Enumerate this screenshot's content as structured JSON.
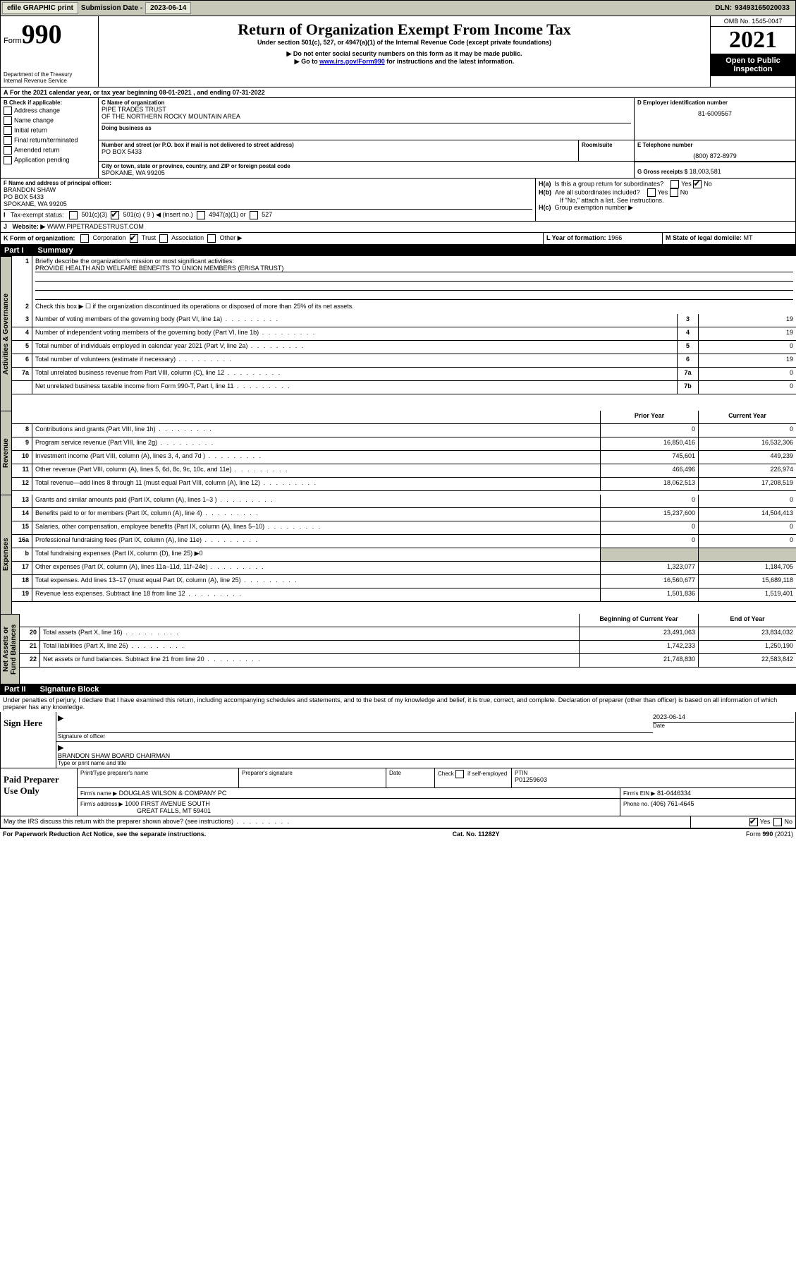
{
  "topbar": {
    "efile": "efile GRAPHIC print",
    "sub_lbl": "Submission Date -",
    "sub_val": "2023-06-14",
    "dln_lbl": "DLN:",
    "dln_val": "93493165020033"
  },
  "header": {
    "form_word": "Form",
    "form_num": "990",
    "title": "Return of Organization Exempt From Income Tax",
    "sub1": "Under section 501(c), 527, or 4947(a)(1) of the Internal Revenue Code (except private foundations)",
    "sub2": "▶ Do not enter social security numbers on this form as it may be made public.",
    "sub3_pre": "▶ Go to ",
    "sub3_link": "www.irs.gov/Form990",
    "sub3_post": " for instructions and the latest information.",
    "dept": "Department of the Treasury",
    "irs": "Internal Revenue Service",
    "omb": "OMB No. 1545-0047",
    "year": "2021",
    "opi": "Open to Public Inspection"
  },
  "A": {
    "text": "For the 2021 calendar year, or tax year beginning 08-01-2021   , and ending 07-31-2022"
  },
  "B": {
    "hdr": "B Check if applicable:",
    "items": [
      "Address change",
      "Name change",
      "Initial return",
      "Final return/terminated",
      "Amended return",
      "Application pending"
    ]
  },
  "C": {
    "name_lbl": "C Name of organization",
    "name1": "PIPE TRADES TRUST",
    "name2": "OF THE NORTHERN ROCKY MOUNTAIN AREA",
    "dba_lbl": "Doing business as",
    "dba": "",
    "addr_lbl": "Number and street (or P.O. box if mail is not delivered to street address)",
    "room_lbl": "Room/suite",
    "addr": "PO BOX 5433",
    "city_lbl": "City or town, state or province, country, and ZIP or foreign postal code",
    "city": "SPOKANE, WA  99205"
  },
  "D": {
    "lbl": "D Employer identification number",
    "val": "81-6009567"
  },
  "E": {
    "lbl": "E Telephone number",
    "val": "(800) 872-8979"
  },
  "G": {
    "lbl": "G Gross receipts $",
    "val": "18,003,581"
  },
  "F": {
    "lbl": "F  Name and address of principal officer:",
    "name": "BRANDON SHAW",
    "addr1": "PO BOX 5433",
    "addr2": "SPOKANE, WA  99205"
  },
  "H": {
    "a": "Is this a group return for subordinates?",
    "b": "Are all subordinates included?",
    "b_note": "If \"No,\" attach a list. See instructions.",
    "c": "Group exemption number ▶"
  },
  "I": {
    "lbl": "Tax-exempt status:",
    "opts": [
      "501(c)(3)",
      "501(c) ( 9 ) ◀ (insert no.)",
      "4947(a)(1) or",
      "527"
    ]
  },
  "J": {
    "lbl": "Website: ▶",
    "val": "WWW.PIPETRADESTRUST.COM"
  },
  "K": {
    "lbl": "K Form of organization:",
    "opts": [
      "Corporation",
      "Trust",
      "Association",
      "Other ▶"
    ]
  },
  "L": {
    "lbl": "L Year of formation:",
    "val": "1966"
  },
  "M": {
    "lbl": "M State of legal domicile:",
    "val": "MT"
  },
  "part1": {
    "num": "Part I",
    "title": "Summary"
  },
  "p1": {
    "l1_lbl": "Briefly describe the organization's mission or most significant activities:",
    "l1_val": "PROVIDE HEALTH AND WELFARE BENEFITS TO UNION MEMBERS (ERISA TRUST)",
    "l2": "Check this box ▶ ☐  if the organization discontinued its operations or disposed of more than 25% of its net assets.",
    "rows": [
      {
        "n": "3",
        "t": "Number of voting members of the governing body (Part VI, line 1a)",
        "box": "3",
        "v": "19"
      },
      {
        "n": "4",
        "t": "Number of independent voting members of the governing body (Part VI, line 1b)",
        "box": "4",
        "v": "19"
      },
      {
        "n": "5",
        "t": "Total number of individuals employed in calendar year 2021 (Part V, line 2a)",
        "box": "5",
        "v": "0"
      },
      {
        "n": "6",
        "t": "Total number of volunteers (estimate if necessary)",
        "box": "6",
        "v": "19"
      },
      {
        "n": "7a",
        "t": "Total unrelated business revenue from Part VIII, column (C), line 12",
        "box": "7a",
        "v": "0"
      },
      {
        "n": "",
        "t": "Net unrelated business taxable income from Form 990-T, Part I, line 11",
        "box": "7b",
        "v": "0"
      }
    ],
    "col_prior": "Prior Year",
    "col_curr": "Current Year",
    "rev": [
      {
        "n": "8",
        "t": "Contributions and grants (Part VIII, line 1h)",
        "p": "0",
        "c": "0"
      },
      {
        "n": "9",
        "t": "Program service revenue (Part VIII, line 2g)",
        "p": "16,850,416",
        "c": "16,532,306"
      },
      {
        "n": "10",
        "t": "Investment income (Part VIII, column (A), lines 3, 4, and 7d )",
        "p": "745,601",
        "c": "449,239"
      },
      {
        "n": "11",
        "t": "Other revenue (Part VIII, column (A), lines 5, 6d, 8c, 9c, 10c, and 11e)",
        "p": "466,496",
        "c": "226,974"
      },
      {
        "n": "12",
        "t": "Total revenue—add lines 8 through 11 (must equal Part VIII, column (A), line 12)",
        "p": "18,062,513",
        "c": "17,208,519"
      }
    ],
    "exp": [
      {
        "n": "13",
        "t": "Grants and similar amounts paid (Part IX, column (A), lines 1–3 )",
        "p": "0",
        "c": "0"
      },
      {
        "n": "14",
        "t": "Benefits paid to or for members (Part IX, column (A), line 4)",
        "p": "15,237,600",
        "c": "14,504,413"
      },
      {
        "n": "15",
        "t": "Salaries, other compensation, employee benefits (Part IX, column (A), lines 5–10)",
        "p": "0",
        "c": "0"
      },
      {
        "n": "16a",
        "t": "Professional fundraising fees (Part IX, column (A), line 11e)",
        "p": "0",
        "c": "0"
      },
      {
        "n": "b",
        "t": "Total fundraising expenses (Part IX, column (D), line 25) ▶0",
        "grey": true
      },
      {
        "n": "17",
        "t": "Other expenses (Part IX, column (A), lines 11a–11d, 11f–24e)",
        "p": "1,323,077",
        "c": "1,184,705"
      },
      {
        "n": "18",
        "t": "Total expenses. Add lines 13–17 (must equal Part IX, column (A), line 25)",
        "p": "16,560,677",
        "c": "15,689,118"
      },
      {
        "n": "19",
        "t": "Revenue less expenses. Subtract line 18 from line 12",
        "p": "1,501,836",
        "c": "1,519,401"
      }
    ],
    "col_beg": "Beginning of Current Year",
    "col_end": "End of Year",
    "na": [
      {
        "n": "20",
        "t": "Total assets (Part X, line 16)",
        "p": "23,491,063",
        "c": "23,834,032"
      },
      {
        "n": "21",
        "t": "Total liabilities (Part X, line 26)",
        "p": "1,742,233",
        "c": "1,250,190"
      },
      {
        "n": "22",
        "t": "Net assets or fund balances. Subtract line 21 from line 20",
        "p": "21,748,830",
        "c": "22,583,842"
      }
    ]
  },
  "vtabs": {
    "gov": "Activities & Governance",
    "rev": "Revenue",
    "exp": "Expenses",
    "na": "Net Assets or\nFund Balances"
  },
  "part2": {
    "num": "Part II",
    "title": "Signature Block"
  },
  "p2": {
    "decl": "Under penalties of perjury, I declare that I have examined this return, including accompanying schedules and statements, and to the best of my knowledge and belief, it is true, correct, and complete. Declaration of preparer (other than officer) is based on all information of which preparer has any knowledge."
  },
  "sign": {
    "here": "Sign Here",
    "sig_lbl": "Signature of officer",
    "date_lbl": "Date",
    "date": "2023-06-14",
    "name": "BRANDON SHAW  BOARD CHAIRMAN",
    "name_lbl": "Type or print name and title"
  },
  "paid": {
    "here": "Paid Preparer Use Only",
    "h1": "Print/Type preparer's name",
    "h2": "Preparer's signature",
    "h3": "Date",
    "h4_pre": "Check",
    "h4_post": "if self-employed",
    "h5": "PTIN",
    "ptin": "P01259603",
    "firm_lbl": "Firm's name   ▶",
    "firm": "DOUGLAS WILSON & COMPANY PC",
    "ein_lbl": "Firm's EIN ▶",
    "ein": "81-0446334",
    "addr_lbl": "Firm's address ▶",
    "addr1": "1000 FIRST AVENUE SOUTH",
    "addr2": "GREAT FALLS, MT  59401",
    "ph_lbl": "Phone no.",
    "ph": "(406) 761-4645"
  },
  "may": {
    "txt": "May the IRS discuss this return with the preparer shown above? (see instructions)",
    "yes": "Yes",
    "no": "No"
  },
  "footer": {
    "l": "For Paperwork Reduction Act Notice, see the separate instructions.",
    "c": "Cat. No. 11282Y",
    "r": "Form 990 (2021)"
  }
}
